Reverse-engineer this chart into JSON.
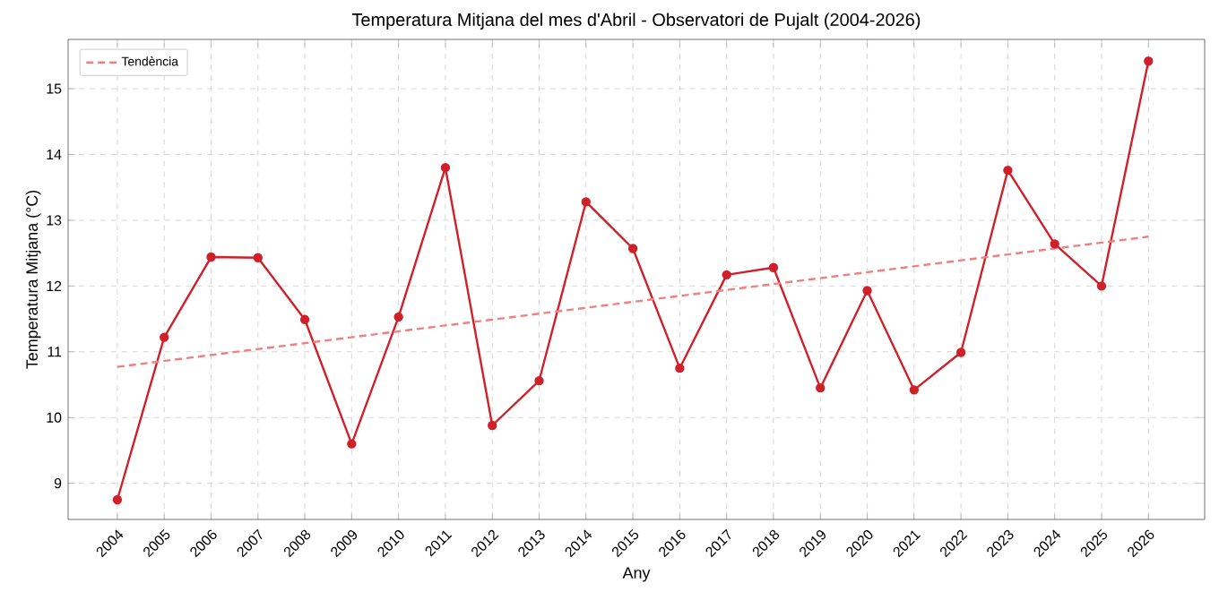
{
  "chart_data": {
    "type": "line",
    "title": "Temperatura Mitjana del mes d'Abril - Observatori de Pujalt (2004-2026)",
    "xlabel": "Any",
    "ylabel": "Temperatura Mitjana (°C)",
    "x": [
      2004,
      2005,
      2006,
      2007,
      2008,
      2009,
      2010,
      2011,
      2012,
      2013,
      2014,
      2015,
      2016,
      2017,
      2018,
      2019,
      2020,
      2021,
      2022,
      2023,
      2024,
      2025,
      2026
    ],
    "series": [
      {
        "color": "#d0202a",
        "marker": "circle",
        "line_style": "solid",
        "values": [
          8.75,
          11.22,
          12.44,
          12.43,
          11.49,
          9.6,
          11.53,
          13.8,
          9.88,
          10.56,
          13.28,
          12.57,
          10.75,
          12.17,
          12.28,
          10.45,
          11.93,
          10.42,
          10.99,
          13.76,
          12.64,
          12.0,
          15.42
        ]
      },
      {
        "name": "Tendència",
        "color": "#f08080",
        "marker": "none",
        "line_style": "dashed",
        "x": [
          2004,
          2026
        ],
        "values": [
          10.77,
          12.75
        ]
      }
    ],
    "xlim": [
      2002.95,
      2027.2
    ],
    "ylim": [
      8.45,
      15.75
    ],
    "xticks": [
      2004,
      2005,
      2006,
      2007,
      2008,
      2009,
      2010,
      2011,
      2012,
      2013,
      2014,
      2015,
      2016,
      2017,
      2018,
      2019,
      2020,
      2021,
      2022,
      2023,
      2024,
      2025,
      2026
    ],
    "yticks": [
      9,
      10,
      11,
      12,
      13,
      14,
      15
    ],
    "grid": true,
    "legend": "top left"
  }
}
